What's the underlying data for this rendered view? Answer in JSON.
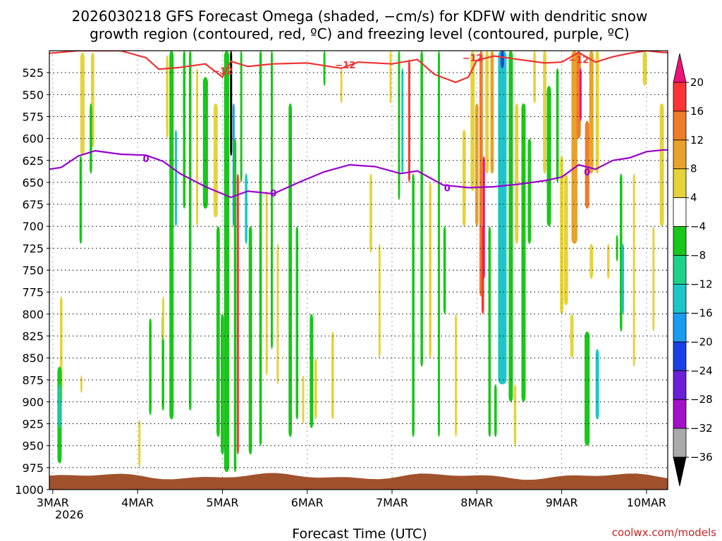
{
  "chart_data": {
    "type": "heatmap",
    "title_lines": [
      "2026030218 GFS Forecast Omega (shaded, −cm/s) for KDFW with dendritic snow",
      "growth region (contoured, red, ºC) and freezing level (contoured, purple, ºC)"
    ],
    "xlabel": "Forecast Time (UTC)",
    "x_ticks": [
      "3MAR",
      "4MAR",
      "5MAR",
      "6MAR",
      "7MAR",
      "8MAR",
      "9MAR",
      "10MAR"
    ],
    "x_year_label": "2026",
    "xlim_days": [
      2.96,
      10.25
    ],
    "y_ticks": [
      525,
      550,
      575,
      600,
      625,
      650,
      675,
      700,
      725,
      750,
      775,
      800,
      825,
      850,
      875,
      900,
      925,
      950,
      975,
      1000
    ],
    "ylim_hpa": [
      500,
      1000
    ],
    "colorbar_ticks": [
      "20",
      "16",
      "12",
      "8",
      "4",
      "−4",
      "−8",
      "−12",
      "−16",
      "−20",
      "−24",
      "−28",
      "−32",
      "−36"
    ],
    "colorbar_colors": [
      "#ee1177",
      "#ff3333",
      "#f07c2a",
      "#e8a22c",
      "#e6d33a",
      "#ffffff",
      "#19c71a",
      "#1fd28c",
      "#1cc6c6",
      "#1a9cf0",
      "#1a3fe6",
      "#6b1fd6",
      "#a310c8",
      "#aaaaaa",
      "#000000"
    ],
    "credit": "coolwx.com/models",
    "snow_growth_label": "−12",
    "snow_growth_contour": {
      "x": [
        2.96,
        3.3,
        3.8,
        4.1,
        4.25,
        4.5,
        4.8,
        5.0,
        5.1,
        5.3,
        5.6,
        6.0,
        6.4,
        6.6,
        7.0,
        7.3,
        7.5,
        7.75,
        7.9,
        8.0,
        8.2,
        8.5,
        8.8,
        9.0,
        9.2,
        9.4,
        9.6,
        9.8,
        10.0,
        10.2,
        10.25
      ],
      "p": [
        503,
        500,
        500,
        508,
        521,
        519,
        515,
        530,
        512,
        518,
        515,
        514,
        520,
        513,
        515,
        510,
        527,
        536,
        530,
        511,
        506,
        510,
        514,
        513,
        502,
        513,
        507,
        503,
        500,
        502,
        502
      ]
    },
    "freezing_label": "0",
    "freezing_contour": {
      "x": [
        2.96,
        3.1,
        3.3,
        3.5,
        3.8,
        4.1,
        4.3,
        4.5,
        4.8,
        5.1,
        5.3,
        5.6,
        5.9,
        6.2,
        6.5,
        6.8,
        7.1,
        7.3,
        7.6,
        7.9,
        8.2,
        8.5,
        8.8,
        9.0,
        9.2,
        9.4,
        9.6,
        9.8,
        10.0,
        10.2,
        10.25
      ],
      "p": [
        635,
        633,
        620,
        614,
        618,
        619,
        626,
        640,
        655,
        667,
        660,
        663,
        650,
        638,
        630,
        632,
        640,
        637,
        653,
        656,
        655,
        652,
        648,
        644,
        630,
        635,
        625,
        622,
        615,
        613,
        613
      ]
    },
    "omega_shading": [
      {
        "x": 3.35,
        "p1": 502,
        "p2": 620,
        "w": 0.05,
        "v": 6
      },
      {
        "x": 3.47,
        "p1": 502,
        "p2": 610,
        "w": 0.04,
        "v": 5
      },
      {
        "x": 3.45,
        "p1": 560,
        "p2": 640,
        "w": 0.03,
        "v": -6
      },
      {
        "x": 3.33,
        "p1": 620,
        "p2": 720,
        "w": 0.03,
        "v": -6
      },
      {
        "x": 3.1,
        "p1": 780,
        "p2": 900,
        "w": 0.03,
        "v": 6
      },
      {
        "x": 3.08,
        "p1": 860,
        "p2": 970,
        "w": 0.05,
        "v": -7
      },
      {
        "x": 3.08,
        "p1": 880,
        "p2": 930,
        "w": 0.03,
        "v": -12
      },
      {
        "x": 3.33,
        "p1": 870,
        "p2": 890,
        "w": 0.01,
        "v": 5
      },
      {
        "x": 4.02,
        "p1": 920,
        "p2": 975,
        "w": 0.02,
        "v": 5
      },
      {
        "x": 4.15,
        "p1": 805,
        "p2": 915,
        "w": 0.03,
        "v": -7
      },
      {
        "x": 4.3,
        "p1": 800,
        "p2": 910,
        "w": 0.03,
        "v": -6
      },
      {
        "x": 4.35,
        "p1": 505,
        "p2": 600,
        "w": 0.03,
        "v": 5
      },
      {
        "x": 4.4,
        "p1": 500,
        "p2": 920,
        "w": 0.05,
        "v": -7
      },
      {
        "x": 4.45,
        "p1": 590,
        "p2": 700,
        "w": 0.02,
        "v": -12
      },
      {
        "x": 4.3,
        "p1": 780,
        "p2": 830,
        "w": 0.02,
        "v": 5
      },
      {
        "x": 4.55,
        "p1": 500,
        "p2": 680,
        "w": 0.03,
        "v": -7
      },
      {
        "x": 4.62,
        "p1": 500,
        "p2": 910,
        "w": 0.03,
        "v": -6
      },
      {
        "x": 4.7,
        "p1": 520,
        "p2": 700,
        "w": 0.02,
        "v": 5
      },
      {
        "x": 4.8,
        "p1": 530,
        "p2": 680,
        "w": 0.06,
        "v": -7
      },
      {
        "x": 4.92,
        "p1": 560,
        "p2": 690,
        "w": 0.05,
        "v": 6
      },
      {
        "x": 4.95,
        "p1": 700,
        "p2": 940,
        "w": 0.04,
        "v": -7
      },
      {
        "x": 5.0,
        "p1": 800,
        "p2": 960,
        "w": 0.04,
        "v": -6
      },
      {
        "x": 5.05,
        "p1": 500,
        "p2": 980,
        "w": 0.06,
        "v": -7
      },
      {
        "x": 5.1,
        "p1": 500,
        "p2": 620,
        "w": 0.02,
        "v": -36
      },
      {
        "x": 5.13,
        "p1": 560,
        "p2": 700,
        "w": 0.02,
        "v": -16
      },
      {
        "x": 5.18,
        "p1": 640,
        "p2": 960,
        "w": 0.02,
        "v": 16
      },
      {
        "x": 5.15,
        "p1": 600,
        "p2": 980,
        "w": 0.03,
        "v": -7
      },
      {
        "x": 5.22,
        "p1": 500,
        "p2": 650,
        "w": 0.02,
        "v": -7
      },
      {
        "x": 5.28,
        "p1": 640,
        "p2": 720,
        "w": 0.03,
        "v": -12
      },
      {
        "x": 5.33,
        "p1": 700,
        "p2": 960,
        "w": 0.04,
        "v": -7
      },
      {
        "x": 5.45,
        "p1": 500,
        "p2": 950,
        "w": 0.03,
        "v": -7
      },
      {
        "x": 5.52,
        "p1": 660,
        "p2": 870,
        "w": 0.02,
        "v": 5
      },
      {
        "x": 5.58,
        "p1": 500,
        "p2": 840,
        "w": 0.02,
        "v": -7
      },
      {
        "x": 5.65,
        "p1": 720,
        "p2": 880,
        "w": 0.02,
        "v": 5
      },
      {
        "x": 5.8,
        "p1": 560,
        "p2": 940,
        "w": 0.04,
        "v": -7
      },
      {
        "x": 5.88,
        "p1": 700,
        "p2": 920,
        "w": 0.03,
        "v": -6
      },
      {
        "x": 5.95,
        "p1": 870,
        "p2": 925,
        "w": 0.02,
        "v": 6
      },
      {
        "x": 6.05,
        "p1": 800,
        "p2": 930,
        "w": 0.04,
        "v": -7
      },
      {
        "x": 6.1,
        "p1": 850,
        "p2": 920,
        "w": 0.03,
        "v": 5
      },
      {
        "x": 6.2,
        "p1": 500,
        "p2": 540,
        "w": 0.02,
        "v": -7
      },
      {
        "x": 6.3,
        "p1": 820,
        "p2": 920,
        "w": 0.03,
        "v": 5
      },
      {
        "x": 6.4,
        "p1": 520,
        "p2": 560,
        "w": 0.02,
        "v": 5
      },
      {
        "x": 6.75,
        "p1": 640,
        "p2": 730,
        "w": 0.03,
        "v": 5
      },
      {
        "x": 6.85,
        "p1": 720,
        "p2": 850,
        "w": 0.02,
        "v": 5
      },
      {
        "x": 6.98,
        "p1": 500,
        "p2": 560,
        "w": 0.02,
        "v": 5
      },
      {
        "x": 7.08,
        "p1": 500,
        "p2": 670,
        "w": 0.02,
        "v": -7
      },
      {
        "x": 7.12,
        "p1": 520,
        "p2": 640,
        "w": 0.02,
        "v": -12
      },
      {
        "x": 7.2,
        "p1": 510,
        "p2": 650,
        "w": 0.02,
        "v": 16
      },
      {
        "x": 7.25,
        "p1": 640,
        "p2": 940,
        "w": 0.03,
        "v": -7
      },
      {
        "x": 7.35,
        "p1": 500,
        "p2": 860,
        "w": 0.03,
        "v": -7
      },
      {
        "x": 7.45,
        "p1": 650,
        "p2": 850,
        "w": 0.03,
        "v": 5
      },
      {
        "x": 7.55,
        "p1": 500,
        "p2": 940,
        "w": 0.02,
        "v": -7
      },
      {
        "x": 7.62,
        "p1": 700,
        "p2": 800,
        "w": 0.03,
        "v": -7
      },
      {
        "x": 7.75,
        "p1": 800,
        "p2": 940,
        "w": 0.02,
        "v": 5
      },
      {
        "x": 7.85,
        "p1": 590,
        "p2": 700,
        "w": 0.04,
        "v": 5
      },
      {
        "x": 7.95,
        "p1": 500,
        "p2": 660,
        "w": 0.05,
        "v": 6
      },
      {
        "x": 8.0,
        "p1": 560,
        "p2": 700,
        "w": 0.04,
        "v": 8
      },
      {
        "x": 8.05,
        "p1": 500,
        "p2": 780,
        "w": 0.04,
        "v": 12
      },
      {
        "x": 8.07,
        "p1": 700,
        "p2": 800,
        "w": 0.03,
        "v": 16
      },
      {
        "x": 8.08,
        "p1": 620,
        "p2": 760,
        "w": 0.02,
        "v": 20
      },
      {
        "x": 8.12,
        "p1": 500,
        "p2": 640,
        "w": 0.04,
        "v": 5
      },
      {
        "x": 8.18,
        "p1": 500,
        "p2": 640,
        "w": 0.04,
        "v": 9
      },
      {
        "x": 8.15,
        "p1": 700,
        "p2": 940,
        "w": 0.03,
        "v": -6
      },
      {
        "x": 8.22,
        "p1": 880,
        "p2": 940,
        "w": 0.03,
        "v": -7
      },
      {
        "x": 8.3,
        "p1": 500,
        "p2": 880,
        "w": 0.1,
        "v": -12
      },
      {
        "x": 8.3,
        "p1": 500,
        "p2": 520,
        "w": 0.04,
        "v": -20
      },
      {
        "x": 8.4,
        "p1": 500,
        "p2": 900,
        "w": 0.05,
        "v": -7
      },
      {
        "x": 8.47,
        "p1": 560,
        "p2": 720,
        "w": 0.04,
        "v": 5
      },
      {
        "x": 8.45,
        "p1": 880,
        "p2": 950,
        "w": 0.03,
        "v": 5
      },
      {
        "x": 8.55,
        "p1": 560,
        "p2": 900,
        "w": 0.05,
        "v": -7
      },
      {
        "x": 8.62,
        "p1": 600,
        "p2": 720,
        "w": 0.04,
        "v": -6
      },
      {
        "x": 8.68,
        "p1": 500,
        "p2": 560,
        "w": 0.03,
        "v": 5
      },
      {
        "x": 8.8,
        "p1": 500,
        "p2": 640,
        "w": 0.04,
        "v": 5
      },
      {
        "x": 8.85,
        "p1": 540,
        "p2": 700,
        "w": 0.05,
        "v": -7
      },
      {
        "x": 8.95,
        "p1": 520,
        "p2": 650,
        "w": 0.03,
        "v": -7
      },
      {
        "x": 9.0,
        "p1": 620,
        "p2": 800,
        "w": 0.04,
        "v": 5
      },
      {
        "x": 9.05,
        "p1": 640,
        "p2": 790,
        "w": 0.05,
        "v": 6
      },
      {
        "x": 9.15,
        "p1": 500,
        "p2": 720,
        "w": 0.07,
        "v": 9
      },
      {
        "x": 9.2,
        "p1": 500,
        "p2": 600,
        "w": 0.05,
        "v": 14
      },
      {
        "x": 9.22,
        "p1": 520,
        "p2": 580,
        "w": 0.02,
        "v": 20
      },
      {
        "x": 9.3,
        "p1": 580,
        "p2": 680,
        "w": 0.05,
        "v": 12
      },
      {
        "x": 9.35,
        "p1": 500,
        "p2": 640,
        "w": 0.05,
        "v": 9
      },
      {
        "x": 9.42,
        "p1": 500,
        "p2": 640,
        "w": 0.04,
        "v": 6
      },
      {
        "x": 9.35,
        "p1": 720,
        "p2": 760,
        "w": 0.04,
        "v": 5
      },
      {
        "x": 9.3,
        "p1": 820,
        "p2": 950,
        "w": 0.06,
        "v": -7
      },
      {
        "x": 9.42,
        "p1": 840,
        "p2": 920,
        "w": 0.04,
        "v": -12
      },
      {
        "x": 9.12,
        "p1": 800,
        "p2": 850,
        "w": 0.04,
        "v": 5
      },
      {
        "x": 9.55,
        "p1": 720,
        "p2": 760,
        "w": 0.03,
        "v": 5
      },
      {
        "x": 9.65,
        "p1": 710,
        "p2": 740,
        "w": 0.02,
        "v": -7
      },
      {
        "x": 9.7,
        "p1": 640,
        "p2": 820,
        "w": 0.03,
        "v": -7
      },
      {
        "x": 9.72,
        "p1": 720,
        "p2": 800,
        "w": 0.02,
        "v": -12
      },
      {
        "x": 9.85,
        "p1": 640,
        "p2": 860,
        "w": 0.02,
        "v": 5
      },
      {
        "x": 9.98,
        "p1": 500,
        "p2": 540,
        "w": 0.05,
        "v": 5
      },
      {
        "x": 10.08,
        "p1": 700,
        "p2": 820,
        "w": 0.02,
        "v": 5
      },
      {
        "x": 10.18,
        "p1": 560,
        "p2": 700,
        "w": 0.05,
        "v": 6
      }
    ]
  }
}
